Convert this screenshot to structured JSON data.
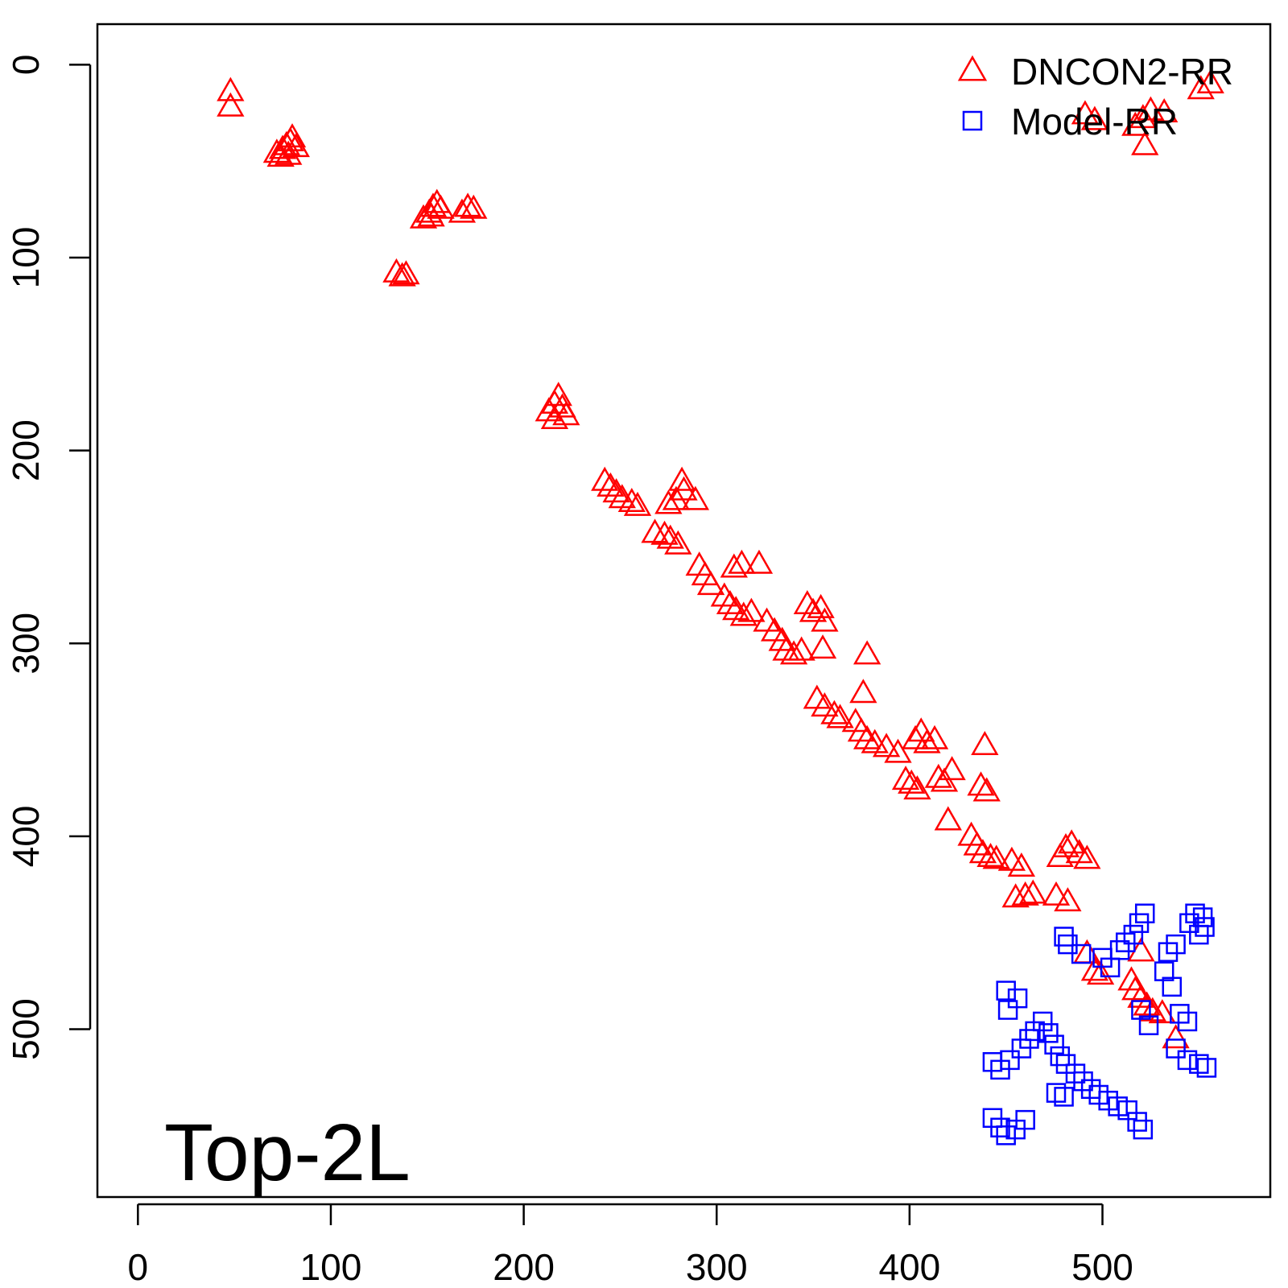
{
  "chart_data": {
    "type": "scatter",
    "annotation": "Top-2L",
    "xlim": [
      -21,
      587
    ],
    "ylim": [
      -21,
      587
    ],
    "y_inverted": true,
    "grid": false,
    "legend_position": "top-right",
    "x_ticks": [
      0,
      100,
      200,
      300,
      400,
      500
    ],
    "y_ticks": [
      0,
      100,
      200,
      300,
      400,
      500
    ],
    "series": [
      {
        "name": "DNCON2-RR",
        "marker": "triangle",
        "color": "#ff0000",
        "points": [
          [
            48,
            14
          ],
          [
            48,
            22
          ],
          [
            72,
            46
          ],
          [
            75,
            44
          ],
          [
            77,
            42
          ],
          [
            79,
            40
          ],
          [
            80,
            38
          ],
          [
            82,
            43
          ],
          [
            78,
            47
          ],
          [
            74,
            48
          ],
          [
            148,
            80
          ],
          [
            151,
            77
          ],
          [
            153,
            74
          ],
          [
            155,
            72
          ],
          [
            157,
            75
          ],
          [
            152,
            79
          ],
          [
            168,
            77
          ],
          [
            171,
            74
          ],
          [
            174,
            75
          ],
          [
            134,
            108
          ],
          [
            137,
            110
          ],
          [
            139,
            109
          ],
          [
            213,
            180
          ],
          [
            216,
            176
          ],
          [
            218,
            172
          ],
          [
            220,
            178
          ],
          [
            222,
            182
          ],
          [
            216,
            184
          ],
          [
            242,
            216
          ],
          [
            245,
            219
          ],
          [
            248,
            222
          ],
          [
            251,
            225
          ],
          [
            256,
            227
          ],
          [
            259,
            229
          ],
          [
            268,
            243
          ],
          [
            273,
            244
          ],
          [
            276,
            246
          ],
          [
            280,
            249
          ],
          [
            279,
            226
          ],
          [
            283,
            221
          ],
          [
            289,
            226
          ],
          [
            282,
            216
          ],
          [
            275,
            228
          ],
          [
            291,
            260
          ],
          [
            294,
            265
          ],
          [
            297,
            270
          ],
          [
            304,
            276
          ],
          [
            307,
            280
          ],
          [
            310,
            283
          ],
          [
            314,
            286
          ],
          [
            318,
            284
          ],
          [
            309,
            261
          ],
          [
            313,
            259
          ],
          [
            322,
            259
          ],
          [
            326,
            289
          ],
          [
            330,
            294
          ],
          [
            334,
            299
          ],
          [
            336,
            304
          ],
          [
            340,
            306
          ],
          [
            344,
            304
          ],
          [
            347,
            280
          ],
          [
            350,
            284
          ],
          [
            354,
            282
          ],
          [
            356,
            289
          ],
          [
            355,
            303
          ],
          [
            352,
            329
          ],
          [
            356,
            333
          ],
          [
            361,
            337
          ],
          [
            364,
            339
          ],
          [
            372,
            341
          ],
          [
            375,
            346
          ],
          [
            378,
            350
          ],
          [
            382,
            352
          ],
          [
            388,
            354
          ],
          [
            394,
            357
          ],
          [
            378,
            306
          ],
          [
            376,
            326
          ],
          [
            398,
            371
          ],
          [
            401,
            373
          ],
          [
            404,
            376
          ],
          [
            403,
            350
          ],
          [
            406,
            346
          ],
          [
            409,
            352
          ],
          [
            413,
            350
          ],
          [
            415,
            370
          ],
          [
            418,
            372
          ],
          [
            422,
            366
          ],
          [
            420,
            392
          ],
          [
            432,
            400
          ],
          [
            435,
            405
          ],
          [
            438,
            409
          ],
          [
            442,
            411
          ],
          [
            445,
            412
          ],
          [
            439,
            353
          ],
          [
            437,
            374
          ],
          [
            440,
            377
          ],
          [
            453,
            413
          ],
          [
            458,
            416
          ],
          [
            455,
            432
          ],
          [
            460,
            431
          ],
          [
            464,
            430
          ],
          [
            478,
            411
          ],
          [
            481,
            406
          ],
          [
            484,
            404
          ],
          [
            488,
            409
          ],
          [
            492,
            412
          ],
          [
            482,
            434
          ],
          [
            476,
            431
          ],
          [
            492,
            461
          ],
          [
            496,
            470
          ],
          [
            499,
            472
          ],
          [
            515,
            475
          ],
          [
            517,
            480
          ],
          [
            520,
            484
          ],
          [
            523,
            488
          ],
          [
            526,
            491
          ],
          [
            520,
            460
          ],
          [
            531,
            492
          ],
          [
            538,
            505
          ],
          [
            491,
            26
          ],
          [
            496,
            29
          ],
          [
            517,
            32
          ],
          [
            521,
            28
          ],
          [
            525,
            24
          ],
          [
            522,
            42
          ],
          [
            532,
            25
          ],
          [
            551,
            13
          ],
          [
            556,
            10
          ]
        ]
      },
      {
        "name": "Model-RR",
        "marker": "square",
        "color": "#0000ff",
        "points": [
          [
            480,
            452
          ],
          [
            482,
            456
          ],
          [
            489,
            461
          ],
          [
            500,
            463
          ],
          [
            504,
            468
          ],
          [
            509,
            459
          ],
          [
            512,
            455
          ],
          [
            516,
            451
          ],
          [
            519,
            445
          ],
          [
            522,
            440
          ],
          [
            534,
            460
          ],
          [
            538,
            456
          ],
          [
            545,
            445
          ],
          [
            548,
            440
          ],
          [
            550,
            451
          ],
          [
            552,
            442
          ],
          [
            553,
            447
          ],
          [
            532,
            470
          ],
          [
            536,
            478
          ],
          [
            540,
            492
          ],
          [
            544,
            496
          ],
          [
            520,
            490
          ],
          [
            524,
            498
          ],
          [
            538,
            510
          ],
          [
            544,
            516
          ],
          [
            550,
            518
          ],
          [
            554,
            520
          ],
          [
            450,
            480
          ],
          [
            451,
            490
          ],
          [
            456,
            484
          ],
          [
            469,
            496
          ],
          [
            472,
            502
          ],
          [
            475,
            508
          ],
          [
            478,
            514
          ],
          [
            481,
            518
          ],
          [
            443,
            517
          ],
          [
            447,
            521
          ],
          [
            452,
            516
          ],
          [
            458,
            510
          ],
          [
            462,
            505
          ],
          [
            465,
            501
          ],
          [
            486,
            523
          ],
          [
            490,
            527
          ],
          [
            494,
            531
          ],
          [
            498,
            534
          ],
          [
            503,
            537
          ],
          [
            508,
            540
          ],
          [
            513,
            542
          ],
          [
            518,
            548
          ],
          [
            521,
            552
          ],
          [
            443,
            546
          ],
          [
            447,
            551
          ],
          [
            450,
            555
          ],
          [
            455,
            552
          ],
          [
            460,
            547
          ],
          [
            476,
            533
          ],
          [
            480,
            535
          ]
        ]
      }
    ]
  }
}
